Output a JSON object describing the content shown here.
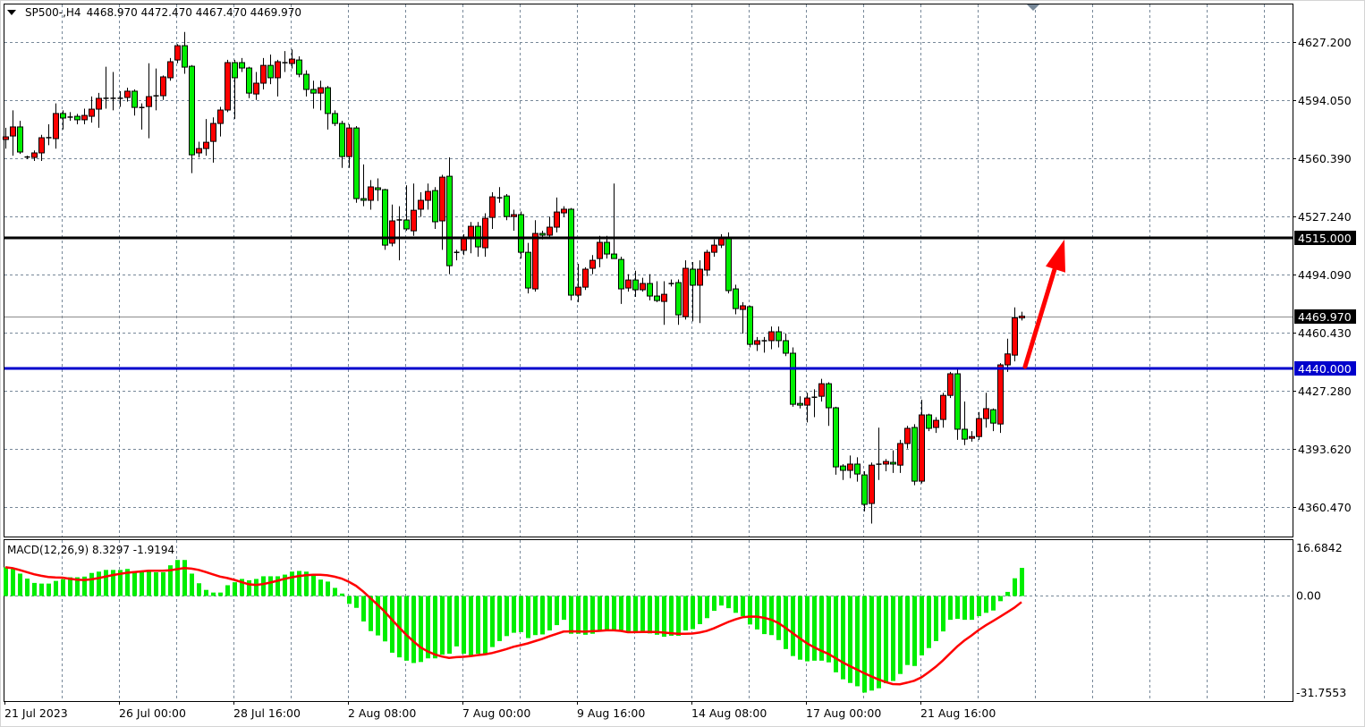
{
  "header": {
    "symbol": "SP500-,H4",
    "ohlc": "4468.970 4472.470 4467.470 4469.970",
    "menu_icon": "triangle-down-icon"
  },
  "macd_label": {
    "name": "MACD(12,26,9)",
    "main": "8.3297",
    "signal": "-1.9194"
  },
  "colors": {
    "bull": "#ff0000",
    "bear": "#00ee00",
    "grid": "#778899",
    "resistance": "#000000",
    "support": "#0000cc",
    "arrow": "#ff0000",
    "macd_hist": "#00ee00",
    "macd_signal": "#ff0000"
  },
  "chart_data": [
    {
      "type": "candlestick",
      "title": "SP500-,H4",
      "y_ticks": [
        "4627.200",
        "4594.050",
        "4560.390",
        "4527.240",
        "4494.090",
        "4460.430",
        "4427.280",
        "4393.620",
        "4360.470"
      ],
      "x_ticks": [
        "21 Jul 2023",
        "26 Jul 00:00",
        "28 Jul 16:00",
        "2 Aug 08:00",
        "7 Aug 00:00",
        "9 Aug 16:00",
        "14 Aug 08:00",
        "17 Aug 00:00",
        "21 Aug 16:00"
      ],
      "grid": true,
      "bullish_color": "red",
      "bearish_color": "green",
      "horizontal_lines": [
        {
          "price": 4515.0,
          "label": "4515.000",
          "color": "#000000"
        },
        {
          "price": 4440.0,
          "label": "4440.000",
          "color": "#0000cc"
        }
      ],
      "current_price": {
        "price": 4469.97,
        "label": "4469.970"
      },
      "arrow": {
        "from_price": 4440.0,
        "to_price": 4515.0,
        "direction": "up",
        "color": "#ff0000"
      },
      "ohlc": [
        [
          4571.3,
          4578,
          4566,
          4572.8
        ],
        [
          4573.3,
          4588,
          4562,
          4578.5
        ],
        [
          4578.5,
          4582,
          4563,
          4564.1
        ],
        [
          4561.5,
          4562,
          4560,
          4561.0
        ],
        [
          4561.0,
          4565,
          4559,
          4563.6
        ],
        [
          4563.6,
          4574,
          4559,
          4572.3
        ],
        [
          4572.6,
          4580,
          4568,
          4572.3
        ],
        [
          4571.8,
          4592,
          4566,
          4586.2
        ],
        [
          4586.2,
          4588,
          4577,
          4583.6
        ],
        [
          4584.4,
          4587,
          4582,
          4584.1
        ],
        [
          4584.6,
          4586,
          4580,
          4582.6
        ],
        [
          4582.6,
          4589,
          4580,
          4585.1
        ],
        [
          4584.6,
          4596,
          4581,
          4588.7
        ],
        [
          4588.7,
          4598,
          4578,
          4594.9
        ],
        [
          4594.9,
          4613,
          4589,
          4595.2
        ],
        [
          4594.9,
          4610,
          4588,
          4595.2
        ],
        [
          4594.9,
          4599,
          4590,
          4595.2
        ],
        [
          4595.4,
          4601,
          4593,
          4599.0
        ],
        [
          4599.0,
          4600,
          4585,
          4589.7
        ],
        [
          4589.7,
          4592,
          4577,
          4589.9
        ],
        [
          4590.2,
          4615,
          4572,
          4595.9
        ],
        [
          4596.4,
          4612,
          4588,
          4596.6
        ],
        [
          4596.4,
          4608,
          4594,
          4607.2
        ],
        [
          4606.7,
          4618,
          4605,
          4615.9
        ],
        [
          4616.9,
          4626,
          4615,
          4625.1
        ],
        [
          4625.1,
          4633,
          4609,
          4612.8
        ],
        [
          4613.3,
          4614,
          4552,
          4562.5
        ],
        [
          4563.6,
          4570,
          4561,
          4566.1
        ],
        [
          4566.1,
          4583,
          4562,
          4569.7
        ],
        [
          4570.2,
          4584,
          4558,
          4580.5
        ],
        [
          4580.5,
          4590,
          4573,
          4588.2
        ],
        [
          4588.2,
          4617,
          4587,
          4615.4
        ],
        [
          4615.4,
          4617,
          4583,
          4606.7
        ],
        [
          4615.4,
          4618,
          4610,
          4612.3
        ],
        [
          4612.3,
          4613,
          4595,
          4597.9
        ],
        [
          4597.4,
          4610,
          4594,
          4603.6
        ],
        [
          4603.6,
          4618,
          4600,
          4613.8
        ],
        [
          4613.8,
          4620,
          4603,
          4606.7
        ],
        [
          4606.7,
          4617,
          4596,
          4615.9
        ],
        [
          4615.6,
          4622,
          4610,
          4615.4
        ],
        [
          4614.9,
          4623,
          4612,
          4617.4
        ],
        [
          4616.9,
          4619,
          4607,
          4608.7
        ],
        [
          4608.7,
          4611,
          4596,
          4600.0
        ],
        [
          4600.0,
          4605,
          4589,
          4597.9
        ],
        [
          4597.9,
          4605,
          4588,
          4601.0
        ],
        [
          4601.0,
          4602,
          4577,
          4586.2
        ],
        [
          4586.2,
          4588,
          4579,
          4580.5
        ],
        [
          4580.5,
          4582,
          4555,
          4561.5
        ],
        [
          4561.5,
          4580,
          4555,
          4577.9
        ],
        [
          4577.9,
          4579,
          4535,
          4537.4
        ],
        [
          4537.4,
          4557,
          4533,
          4536.4
        ],
        [
          4536.4,
          4548,
          4531,
          4544.1
        ],
        [
          4543.6,
          4549,
          4536,
          4542.5
        ],
        [
          4542.5,
          4543,
          4508,
          4510.7
        ],
        [
          4511.8,
          4534,
          4510,
          4524.6
        ],
        [
          4525.4,
          4533,
          4502,
          4525.1
        ],
        [
          4525.1,
          4545,
          4519,
          4520.0
        ],
        [
          4518.9,
          4546,
          4516,
          4530.7
        ],
        [
          4531.3,
          4541,
          4527,
          4536.4
        ],
        [
          4536.4,
          4546,
          4531,
          4541.5
        ],
        [
          4542.0,
          4544,
          4520,
          4524.1
        ],
        [
          4524.6,
          4551,
          4508,
          4549.7
        ],
        [
          4550.2,
          4561,
          4494,
          4498.9
        ],
        [
          4506.8,
          4508,
          4502,
          4506.6
        ],
        [
          4507.7,
          4517,
          4505,
          4514.3
        ],
        [
          4514.3,
          4524,
          4506,
          4521.5
        ],
        [
          4521.5,
          4524,
          4504,
          4509.7
        ],
        [
          4509.2,
          4529,
          4504,
          4526.1
        ],
        [
          4526.6,
          4541,
          4520,
          4538.4
        ],
        [
          4538.1,
          4544,
          4535,
          4537.9
        ],
        [
          4538.9,
          4540,
          4525,
          4527.1
        ],
        [
          4527.1,
          4531,
          4519,
          4528.2
        ],
        [
          4528.2,
          4530,
          4503,
          4506.6
        ],
        [
          4506.6,
          4512,
          4483,
          4486.1
        ],
        [
          4485.6,
          4525,
          4484,
          4517.4
        ],
        [
          4517.4,
          4519,
          4514,
          4516.4
        ],
        [
          4516.4,
          4527,
          4515,
          4521.0
        ],
        [
          4521.0,
          4538,
          4518,
          4529.7
        ],
        [
          4529.2,
          4533,
          4527,
          4531.3
        ],
        [
          4531.3,
          4532,
          4479,
          4482.0
        ],
        [
          4482.0,
          4500,
          4478,
          4486.6
        ],
        [
          4486.6,
          4498,
          4485,
          4496.9
        ],
        [
          4497.4,
          4505,
          4494,
          4502.0
        ],
        [
          4503.0,
          4516,
          4498,
          4512.3
        ],
        [
          4512.3,
          4516,
          4503,
          4505.6
        ],
        [
          4505.6,
          4546,
          4503,
          4503.0
        ],
        [
          4502.5,
          4504,
          4477,
          4485.6
        ],
        [
          4486.1,
          4494,
          4484,
          4490.7
        ],
        [
          4490.7,
          4496,
          4481,
          4485.1
        ],
        [
          4485.1,
          4492,
          4484,
          4488.7
        ],
        [
          4488.7,
          4494,
          4479,
          4481.5
        ],
        [
          4481.5,
          4490,
          4478,
          4478.9
        ],
        [
          4478.4,
          4490,
          4465,
          4482.5
        ],
        [
          4488.9,
          4491,
          4487,
          4488.7
        ],
        [
          4489.2,
          4491,
          4465,
          4470.7
        ],
        [
          4469.7,
          4502,
          4468,
          4497.4
        ],
        [
          4496.9,
          4501,
          4467,
          4487.7
        ],
        [
          4487.7,
          4502,
          4466,
          4496.9
        ],
        [
          4496.4,
          4508,
          4493,
          4506.6
        ],
        [
          4506.6,
          4514,
          4504,
          4510.7
        ],
        [
          4510.7,
          4517,
          4509,
          4514.8
        ],
        [
          4514.8,
          4518,
          4483,
          4484.6
        ],
        [
          4485.6,
          4488,
          4471,
          4474.3
        ],
        [
          4473.8,
          4478,
          4460,
          4475.9
        ],
        [
          4475.4,
          4476,
          4452,
          4453.8
        ],
        [
          4453.8,
          4458,
          4450,
          4455.9
        ],
        [
          4456.1,
          4458,
          4449,
          4455.9
        ],
        [
          4455.9,
          4464,
          4451,
          4461.0
        ],
        [
          4461.0,
          4464,
          4452,
          4455.9
        ],
        [
          4455.9,
          4460,
          4447,
          4448.7
        ],
        [
          4448.7,
          4452,
          4418,
          4419.4
        ],
        [
          4419.9,
          4424,
          4417,
          4418.9
        ],
        [
          4418.9,
          4426,
          4409,
          4423.0
        ],
        [
          4423.7,
          4428,
          4412,
          4423.5
        ],
        [
          4424.0,
          4434,
          4421,
          4431.2
        ],
        [
          4431.2,
          4432,
          4407,
          4417.4
        ],
        [
          4417.4,
          4418,
          4379,
          4383.5
        ],
        [
          4384.0,
          4385,
          4376,
          4381.5
        ],
        [
          4381.5,
          4390,
          4377,
          4385.1
        ],
        [
          4385.1,
          4389,
          4375,
          4379.4
        ],
        [
          4378.9,
          4381,
          4358,
          4362.0
        ],
        [
          4362.5,
          4386,
          4351,
          4384.5
        ],
        [
          4385.3,
          4406,
          4376,
          4385.1
        ],
        [
          4385.1,
          4388,
          4381,
          4386.6
        ],
        [
          4386.1,
          4393,
          4380,
          4385.1
        ],
        [
          4384.5,
          4399,
          4380,
          4396.9
        ],
        [
          4396.9,
          4407,
          4394,
          4405.6
        ],
        [
          4406.1,
          4408,
          4373,
          4375.3
        ],
        [
          4375.3,
          4422,
          4374,
          4413.3
        ],
        [
          4413.3,
          4414,
          4404,
          4405.6
        ],
        [
          4406.1,
          4412,
          4403,
          4410.2
        ],
        [
          4410.7,
          4426,
          4406,
          4424.5
        ],
        [
          4424.5,
          4438,
          4423,
          4436.9
        ],
        [
          4436.9,
          4440,
          4399,
          4405.1
        ],
        [
          4405.1,
          4421,
          4396,
          4399.4
        ],
        [
          4399.9,
          4404,
          4398,
          4400.9
        ],
        [
          4400.9,
          4415,
          4399,
          4411.2
        ],
        [
          4411.2,
          4426,
          4406,
          4416.9
        ],
        [
          4416.3,
          4417,
          4404,
          4408.6
        ],
        [
          4408.1,
          4443,
          4403,
          4442.0
        ],
        [
          4442.0,
          4457,
          4438,
          4448.3
        ],
        [
          4447.6,
          4475,
          4444,
          4468.97
        ],
        [
          4468.97,
          4472.47,
          4467.47,
          4469.97
        ]
      ]
    },
    {
      "type": "bar",
      "title": "MACD(12,26,9)",
      "y_ticks": [
        "16.6842",
        "0.00",
        "-31.7553"
      ],
      "ylim": [
        -31.7553,
        16.6842
      ],
      "signal_period": 9,
      "main_last": 8.3297,
      "signal_last": -1.9194,
      "histogram": [
        8.5,
        8.0,
        6.6,
        5.1,
        3.8,
        3.6,
        3.6,
        4.4,
        4.9,
        5.5,
        5.5,
        5.7,
        6.8,
        7.2,
        7.7,
        7.7,
        7.7,
        8.0,
        7.3,
        7.3,
        7.3,
        7.0,
        7.0,
        9.1,
        10.7,
        10.7,
        6.6,
        3.7,
        1.7,
        0.9,
        0.9,
        3.1,
        4.0,
        5.0,
        4.6,
        5.0,
        5.8,
        5.8,
        5.8,
        6.3,
        7.2,
        7.4,
        7.2,
        6.0,
        4.8,
        4.2,
        2.3,
        0.6,
        -2.5,
        -3.7,
        -7.8,
        -10.7,
        -12.0,
        -13.8,
        -17.2,
        -18.6,
        -19.6,
        -20.3,
        -20.0,
        -18.9,
        -18.9,
        -17.8,
        -17.5,
        -15.3,
        -17.5,
        -18.0,
        -17.5,
        -17.8,
        -15.5,
        -13.7,
        -12.2,
        -11.2,
        -11.0,
        -12.8,
        -11.9,
        -11.7,
        -10.5,
        -8.9,
        -7.3,
        -11.5,
        -11.5,
        -11.8,
        -11.5,
        -10.9,
        -10.4,
        -10.4,
        -10.4,
        -10.8,
        -11.3,
        -11.3,
        -11.4,
        -11.8,
        -12.4,
        -12.1,
        -12.1,
        -10.5,
        -10.1,
        -8.6,
        -6.8,
        -4.6,
        -3.0,
        -3.8,
        -5.2,
        -6.2,
        -8.7,
        -10.2,
        -11.6,
        -11.9,
        -13.4,
        -16.1,
        -18.2,
        -19.3,
        -19.8,
        -19.6,
        -19.6,
        -20.1,
        -23.1,
        -25.2,
        -26.3,
        -27.3,
        -29.2,
        -28.6,
        -27.9,
        -26.4,
        -25.7,
        -23.6,
        -20.9,
        -21.2,
        -18.0,
        -15.8,
        -13.7,
        -10.8,
        -7.3,
        -7.0,
        -7.3,
        -7.3,
        -6.2,
        -5.2,
        -4.5,
        -1.7,
        1.1,
        5.2,
        8.33
      ]
    }
  ]
}
